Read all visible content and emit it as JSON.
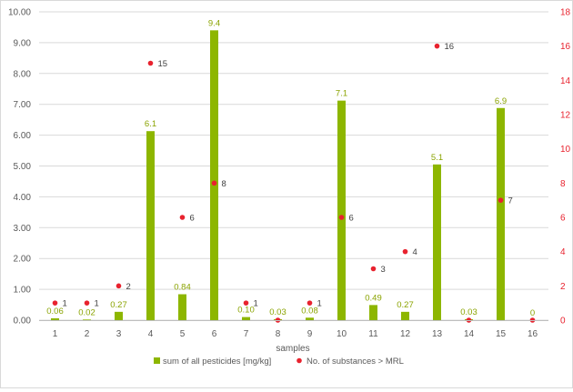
{
  "chart_data": {
    "type": "bar",
    "title": "",
    "xlabel": "samples",
    "grid": true,
    "legend_position": "bottom",
    "categories": [
      "1",
      "2",
      "3",
      "4",
      "5",
      "6",
      "7",
      "8",
      "9",
      "10",
      "11",
      "12",
      "13",
      "14",
      "15",
      "16"
    ],
    "y_left": {
      "ylim": [
        0,
        10
      ],
      "ticks": [
        "0.00",
        "1.00",
        "2.00",
        "3.00",
        "4.00",
        "5.00",
        "6.00",
        "7.00",
        "8.00",
        "9.00",
        "10.00"
      ]
    },
    "y_right": {
      "ylim": [
        0,
        18
      ],
      "ticks": [
        "0",
        "2",
        "4",
        "6",
        "8",
        "10",
        "12",
        "14",
        "16",
        "18"
      ]
    },
    "series": [
      {
        "name": "sum of all pesticides [mg/kg]",
        "type": "bar",
        "axis": "left",
        "color": "#8db600",
        "values": [
          0.06,
          0.02,
          0.27,
          6.13,
          0.84,
          9.4,
          0.1,
          0.03,
          0.08,
          7.12,
          0.49,
          0.27,
          5.05,
          0.03,
          6.88,
          0
        ],
        "labels": [
          "0.06",
          "0.02",
          "0.27",
          "6.1",
          "0.84",
          "9.4",
          "0.10",
          "0.03",
          "0.08",
          "7.1",
          "0.49",
          "0.27",
          "5.1",
          "0.03",
          "6.9",
          "0"
        ]
      },
      {
        "name": "No. of substances > MRL",
        "type": "scatter",
        "axis": "right",
        "color": "#e8222e",
        "values": [
          1,
          1,
          2,
          15,
          6,
          8,
          1,
          0,
          1,
          6,
          3,
          4,
          16,
          0,
          7,
          0
        ],
        "labels": [
          "1",
          "1",
          "2",
          "15",
          "6",
          "8",
          "1",
          "",
          "1",
          "6",
          "3",
          "4",
          "16",
          "",
          "7",
          ""
        ]
      }
    ]
  }
}
